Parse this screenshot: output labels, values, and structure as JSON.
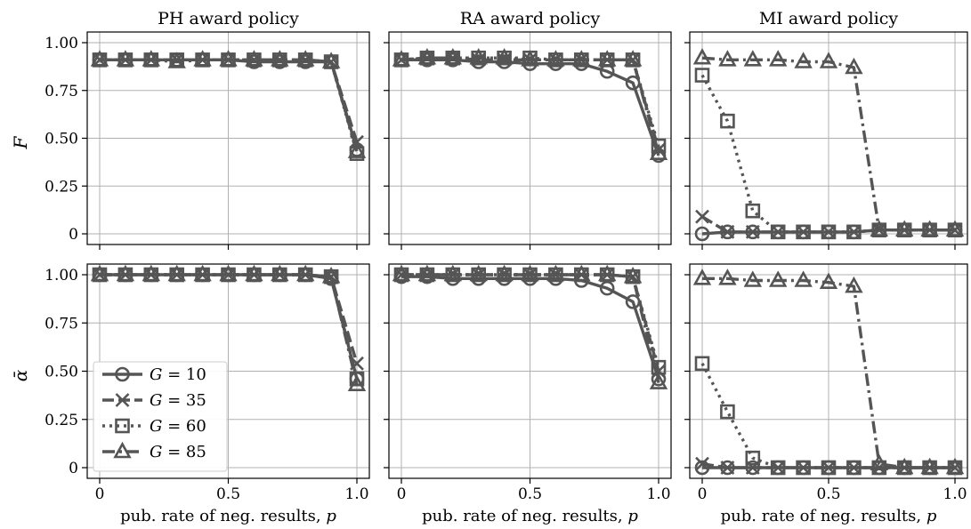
{
  "colors": {
    "series": "#555555",
    "grid": "#b0b0b0",
    "frame": "#000000"
  },
  "chart_data": [
    {
      "type": "line",
      "title": "PH award policy",
      "xlabel": "pub. rate of neg. results, p",
      "ylabel": "F",
      "xlim": [
        0,
        1.0
      ],
      "ylim": [
        0,
        1.0
      ],
      "x": [
        0,
        0.1,
        0.2,
        0.3,
        0.4,
        0.5,
        0.6,
        0.7,
        0.8,
        0.9,
        1.0
      ],
      "series": [
        {
          "name": "G = 10",
          "values": [
            0.91,
            0.91,
            0.91,
            0.91,
            0.91,
            0.91,
            0.9,
            0.9,
            0.9,
            0.9,
            0.44
          ]
        },
        {
          "name": "G = 35",
          "values": [
            0.91,
            0.91,
            0.91,
            0.91,
            0.91,
            0.91,
            0.91,
            0.91,
            0.91,
            0.9,
            0.48
          ]
        },
        {
          "name": "G = 60",
          "values": [
            0.91,
            0.91,
            0.91,
            0.91,
            0.91,
            0.91,
            0.91,
            0.91,
            0.91,
            0.9,
            0.42
          ]
        },
        {
          "name": "G = 85",
          "values": [
            0.91,
            0.91,
            0.91,
            0.9,
            0.91,
            0.91,
            0.91,
            0.91,
            0.91,
            0.9,
            0.43
          ]
        }
      ]
    },
    {
      "type": "line",
      "title": "RA award policy",
      "xlabel": "pub. rate of neg. results, p",
      "ylabel": "",
      "xlim": [
        0,
        1.0
      ],
      "ylim": [
        0,
        1.0
      ],
      "x": [
        0,
        0.1,
        0.2,
        0.3,
        0.4,
        0.5,
        0.6,
        0.7,
        0.8,
        0.9,
        1.0
      ],
      "series": [
        {
          "name": "G = 10",
          "values": [
            0.91,
            0.91,
            0.91,
            0.9,
            0.9,
            0.89,
            0.89,
            0.89,
            0.85,
            0.79,
            0.41
          ]
        },
        {
          "name": "G = 35",
          "values": [
            0.91,
            0.92,
            0.92,
            0.91,
            0.91,
            0.91,
            0.91,
            0.91,
            0.91,
            0.91,
            0.44
          ]
        },
        {
          "name": "G = 60",
          "values": [
            0.91,
            0.92,
            0.92,
            0.92,
            0.92,
            0.92,
            0.91,
            0.91,
            0.91,
            0.91,
            0.46
          ]
        },
        {
          "name": "G = 85",
          "values": [
            0.91,
            0.92,
            0.92,
            0.92,
            0.92,
            0.91,
            0.91,
            0.91,
            0.91,
            0.91,
            0.42
          ]
        }
      ]
    },
    {
      "type": "line",
      "title": "MI award policy",
      "xlabel": "pub. rate of neg. results, p",
      "ylabel": "",
      "xlim": [
        0,
        1.0
      ],
      "ylim": [
        0,
        1.0
      ],
      "x": [
        0,
        0.1,
        0.2,
        0.3,
        0.4,
        0.5,
        0.6,
        0.7,
        0.8,
        0.9,
        1.0
      ],
      "series": [
        {
          "name": "G = 10",
          "values": [
            0.0,
            0.01,
            0.01,
            0.01,
            0.01,
            0.01,
            0.01,
            0.02,
            0.02,
            0.02,
            0.02
          ]
        },
        {
          "name": "G = 35",
          "values": [
            0.09,
            0.01,
            0.01,
            0.01,
            0.01,
            0.01,
            0.01,
            0.02,
            0.02,
            0.02,
            0.02
          ]
        },
        {
          "name": "G = 60",
          "values": [
            0.83,
            0.59,
            0.12,
            0.01,
            0.01,
            0.01,
            0.01,
            0.02,
            0.02,
            0.02,
            0.02
          ]
        },
        {
          "name": "G = 85",
          "values": [
            0.92,
            0.91,
            0.91,
            0.91,
            0.9,
            0.9,
            0.87,
            0.02,
            0.02,
            0.02,
            0.02
          ]
        }
      ]
    },
    {
      "type": "line",
      "title": "",
      "xlabel": "pub. rate of neg. results, p",
      "ylabel": "ᾱ",
      "xlim": [
        0,
        1.0
      ],
      "ylim": [
        0,
        1.0
      ],
      "x": [
        0,
        0.1,
        0.2,
        0.3,
        0.4,
        0.5,
        0.6,
        0.7,
        0.8,
        0.9,
        1.0
      ],
      "series": [
        {
          "name": "G = 10",
          "values": [
            1.0,
            1.0,
            1.0,
            1.0,
            1.0,
            1.0,
            1.0,
            1.0,
            1.0,
            0.98,
            0.46
          ]
        },
        {
          "name": "G = 35",
          "values": [
            1.0,
            1.0,
            1.0,
            1.0,
            1.0,
            1.0,
            1.0,
            1.0,
            1.0,
            0.99,
            0.54
          ]
        },
        {
          "name": "G = 60",
          "values": [
            1.0,
            1.0,
            1.0,
            1.0,
            1.0,
            1.0,
            1.0,
            1.0,
            1.0,
            0.99,
            0.46
          ]
        },
        {
          "name": "G = 85",
          "values": [
            1.0,
            1.0,
            1.0,
            1.0,
            1.0,
            1.0,
            1.0,
            1.0,
            1.0,
            0.99,
            0.43
          ]
        }
      ]
    },
    {
      "type": "line",
      "title": "",
      "xlabel": "pub. rate of neg. results, p",
      "ylabel": "",
      "xlim": [
        0,
        1.0
      ],
      "ylim": [
        0,
        1.0
      ],
      "x": [
        0,
        0.1,
        0.2,
        0.3,
        0.4,
        0.5,
        0.6,
        0.7,
        0.8,
        0.9,
        1.0
      ],
      "series": [
        {
          "name": "G = 10",
          "values": [
            0.99,
            0.99,
            0.98,
            0.98,
            0.98,
            0.98,
            0.98,
            0.97,
            0.93,
            0.86,
            0.46
          ]
        },
        {
          "name": "G = 35",
          "values": [
            1.0,
            1.0,
            1.0,
            1.0,
            1.0,
            1.0,
            1.0,
            1.0,
            1.0,
            0.99,
            0.5
          ]
        },
        {
          "name": "G = 60",
          "values": [
            1.0,
            1.0,
            1.0,
            1.0,
            1.0,
            1.0,
            1.0,
            1.0,
            1.0,
            0.99,
            0.52
          ]
        },
        {
          "name": "G = 85",
          "values": [
            1.0,
            1.0,
            1.0,
            1.0,
            1.0,
            1.0,
            1.0,
            1.0,
            1.0,
            0.99,
            0.44
          ]
        }
      ]
    },
    {
      "type": "line",
      "title": "",
      "xlabel": "pub. rate of neg. results, p",
      "ylabel": "",
      "xlim": [
        0,
        1.0
      ],
      "ylim": [
        0,
        1.0
      ],
      "x": [
        0,
        0.1,
        0.2,
        0.3,
        0.4,
        0.5,
        0.6,
        0.7,
        0.8,
        0.9,
        1.0
      ],
      "series": [
        {
          "name": "G = 10",
          "values": [
            0.0,
            0.0,
            0.0,
            0.0,
            0.0,
            0.0,
            0.0,
            0.0,
            0.0,
            0.0,
            0.0
          ]
        },
        {
          "name": "G = 35",
          "values": [
            0.02,
            0.0,
            0.0,
            0.0,
            0.0,
            0.0,
            0.0,
            0.0,
            0.0,
            0.0,
            0.0
          ]
        },
        {
          "name": "G = 60",
          "values": [
            0.54,
            0.29,
            0.05,
            0.0,
            0.0,
            0.0,
            0.0,
            0.0,
            0.0,
            0.0,
            0.0
          ]
        },
        {
          "name": "G = 85",
          "values": [
            0.98,
            0.98,
            0.97,
            0.97,
            0.97,
            0.96,
            0.94,
            0.02,
            0.0,
            0.0,
            0.0
          ]
        }
      ]
    }
  ],
  "axes": {
    "x_ticks": [
      "0",
      "0.5",
      "1.0"
    ],
    "y_ticks": [
      "0",
      "0.25",
      "0.50",
      "0.75",
      "1.00"
    ]
  },
  "legend": {
    "placement": "lower-left of bottom-left panel",
    "entries": [
      {
        "prefix": "G",
        "suffix": " = 10",
        "marker": "circle",
        "dash": "solid"
      },
      {
        "prefix": "G",
        "suffix": " = 35",
        "marker": "x",
        "dash": "dashed"
      },
      {
        "prefix": "G",
        "suffix": " = 60",
        "marker": "square",
        "dash": "dotted"
      },
      {
        "prefix": "G",
        "suffix": " = 85",
        "marker": "triangle",
        "dash": "dashdot"
      }
    ]
  }
}
